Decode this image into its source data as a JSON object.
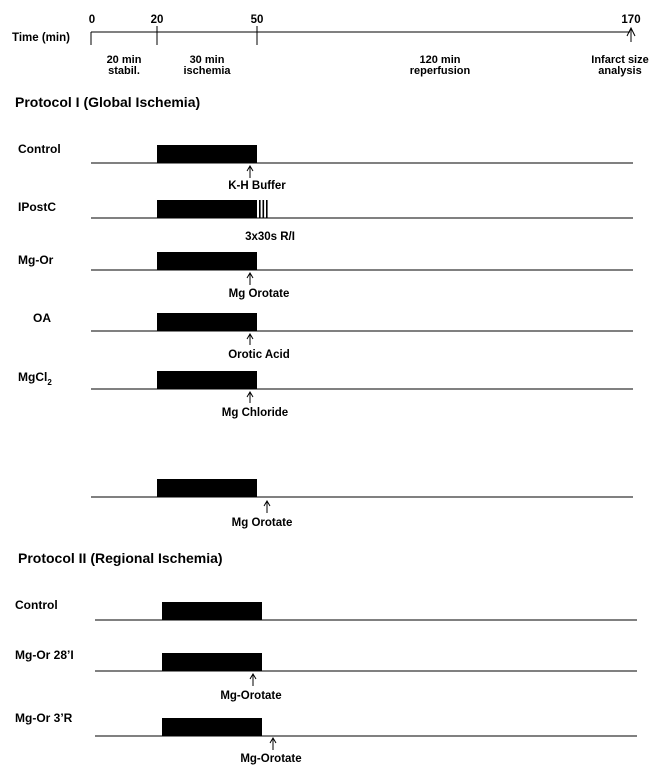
{
  "timeline": {
    "axis_label": "Time (min)",
    "ticks": [
      "0",
      "20",
      "50",
      "170"
    ],
    "phases": [
      {
        "line1": "20 min",
        "line2": "stabil."
      },
      {
        "line1": "30 min",
        "line2": "ischemia"
      },
      {
        "line1": "120 min",
        "line2": "reperfusion"
      }
    ],
    "end_label": {
      "line1": "Infarct size",
      "line2": "analysis"
    }
  },
  "protocol1": {
    "title": "Protocol I (Global Ischemia)",
    "rows": [
      {
        "name": "Control",
        "treatment": "K-H Buffer",
        "ischemia_min": [
          20,
          50
        ],
        "arrow_min": 48
      },
      {
        "name": "IPostC",
        "treatment": "3x30s R/I",
        "ischemia_min": [
          20,
          50
        ],
        "postc_cycles": 3
      },
      {
        "name": "Mg-Or",
        "treatment": "Mg Orotate",
        "ischemia_min": [
          20,
          50
        ],
        "arrow_min": 48
      },
      {
        "name": "OA",
        "treatment": "Orotic Acid",
        "ischemia_min": [
          20,
          50
        ],
        "arrow_min": 48
      },
      {
        "name": "MgCl",
        "name_subscript": "2",
        "treatment": "Mg Chloride",
        "ischemia_min": [
          20,
          50
        ],
        "arrow_min": 48
      },
      {
        "name": "",
        "treatment": "Mg Orotate",
        "ischemia_min": [
          20,
          50
        ],
        "arrow_min": 53
      }
    ]
  },
  "protocol2": {
    "title": "Protocol II (Regional Ischemia)",
    "rows": [
      {
        "name": "Control",
        "treatment": "",
        "ischemia_min": [
          20,
          50
        ]
      },
      {
        "name": "Mg-Or 28’I",
        "treatment": "Mg-Orotate",
        "ischemia_min": [
          20,
          50
        ],
        "arrow_min": 48
      },
      {
        "name": "Mg-Or 3’R",
        "treatment": "Mg-Orotate",
        "ischemia_min": [
          20,
          50
        ],
        "arrow_min": 53
      }
    ]
  }
}
